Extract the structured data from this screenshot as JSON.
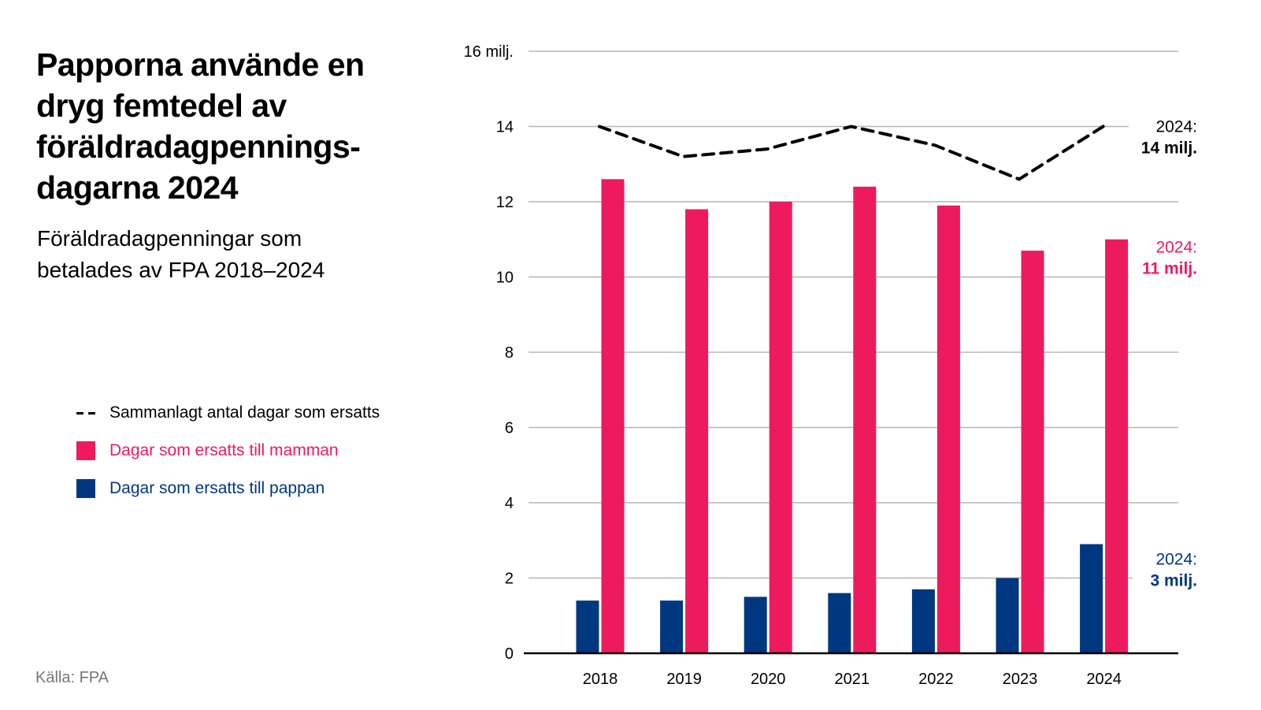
{
  "header": {
    "title": "Papporna använde en dryg femtedel av föräldradagpennings-dagarna 2024",
    "title_lines": [
      "Papporna använde en",
      "dryg femtedel av",
      "föräldradagpennings-",
      "dagarna 2024"
    ],
    "subtitle_lines": [
      "Föräldradagpenningar som",
      "betalades av FPA 2018–2024"
    ]
  },
  "legend": {
    "items": [
      {
        "label": "Sammanlagt antal dagar som ersatts",
        "kind": "dashed-line",
        "color": "#000000"
      },
      {
        "label": "Dagar som ersatts till mamman",
        "kind": "square",
        "color": "#ee1a5e"
      },
      {
        "label": "Dagar som ersatts till pappan",
        "kind": "square",
        "color": "#003781"
      }
    ]
  },
  "source": "Källa: FPA",
  "chart_data": {
    "type": "bar",
    "title": "Papporna använde en dryg femtedel av föräldradagpenningsdagarna 2024",
    "subtitle": "Föräldradagpenningar som betalades av FPA 2018–2024",
    "xlabel": "",
    "ylabel": "",
    "categories": [
      "2018",
      "2019",
      "2020",
      "2021",
      "2022",
      "2023",
      "2024"
    ],
    "ylim": [
      0,
      16
    ],
    "yticks": [
      0,
      2,
      4,
      6,
      8,
      10,
      12,
      14,
      16
    ],
    "ytick_labels": [
      "0",
      "2",
      "4",
      "6",
      "8",
      "10",
      "12",
      "14",
      "16 milj."
    ],
    "grid": true,
    "legend_position": "left",
    "series": [
      {
        "name": "Dagar som ersatts till pappan",
        "type": "bar",
        "color": "#003781",
        "values": [
          1.4,
          1.4,
          1.5,
          1.6,
          1.7,
          2.0,
          2.9
        ]
      },
      {
        "name": "Dagar som ersatts till mamman",
        "type": "bar",
        "color": "#ee1a5e",
        "values": [
          12.6,
          11.8,
          12.0,
          12.4,
          11.9,
          10.7,
          11.0
        ]
      },
      {
        "name": "Sammanlagt antal dagar som ersatts",
        "type": "line",
        "style": "dashed",
        "color": "#000000",
        "values": [
          14.0,
          13.2,
          13.4,
          14.0,
          13.5,
          12.6,
          14.0
        ]
      }
    ],
    "annotations": [
      {
        "series": "Sammanlagt antal dagar som ersatts",
        "line1": "2024:",
        "line2": "14 milj.",
        "value": 14,
        "color": "#000000"
      },
      {
        "series": "Dagar som ersatts till mamman",
        "line1": "2024:",
        "line2": "11 milj.",
        "value": 11,
        "color": "#ee1a5e"
      },
      {
        "series": "Dagar som ersatts till pappan",
        "line1": "2024:",
        "line2": "3 milj.",
        "value": 3,
        "color": "#003781"
      }
    ]
  }
}
